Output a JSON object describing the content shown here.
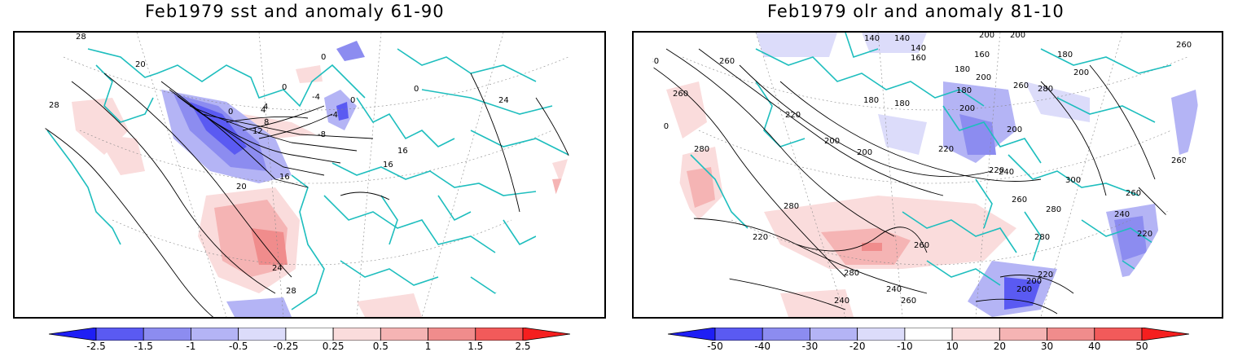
{
  "panels": [
    {
      "title": "Feb1979 sst and anomaly 61-90",
      "contour_labels": [
        "28",
        "20",
        "28",
        "0",
        "0",
        "4",
        "-4",
        "0",
        "0",
        "-4",
        "4",
        "8",
        "12",
        "-8",
        "16",
        "16",
        "16",
        "20",
        "24",
        "24",
        "28",
        "0"
      ],
      "colorbar": {
        "labels": [
          "-2.5",
          "-1.5",
          "-1",
          "-0.5",
          "-0.25",
          "0.25",
          "0.5",
          "1",
          "1.5",
          "2.5"
        ],
        "colors": [
          "#1f1ff5",
          "#5a5af2",
          "#8c8cf0",
          "#b4b4f5",
          "#dcdcfa",
          "#ffffff",
          "#fadcdc",
          "#f5b4b4",
          "#f08c8c",
          "#f25a5a",
          "#f51f1f"
        ]
      }
    },
    {
      "title": "Feb1979 olr and anomaly 81-10",
      "contour_labels": [
        "140",
        "140",
        "140",
        "200",
        "200",
        "240",
        "260",
        "260",
        "160",
        "180",
        "160",
        "180",
        "200",
        "260",
        "180",
        "280",
        "260",
        "200",
        "180",
        "200",
        "180",
        "220",
        "200",
        "240",
        "280",
        "200",
        "220",
        "200",
        "220",
        "240",
        "260",
        "300",
        "220",
        "260",
        "280",
        "260",
        "240",
        "280",
        "220",
        "280",
        "220",
        "280",
        "260",
        "280",
        "240",
        "260",
        "240",
        "220",
        "200",
        "200"
      ],
      "colorbar": {
        "labels": [
          "-50",
          "-40",
          "-30",
          "-20",
          "-10",
          "10",
          "20",
          "30",
          "40",
          "50"
        ],
        "colors": [
          "#1f1ff5",
          "#5a5af2",
          "#8c8cf0",
          "#b4b4f5",
          "#dcdcfa",
          "#ffffff",
          "#fadcdc",
          "#f5b4b4",
          "#f08c8c",
          "#f25a5a",
          "#f51f1f"
        ]
      }
    }
  ],
  "colors": {
    "coastline": "#1ebebe",
    "contour": "#000000",
    "graticule": "#888888"
  }
}
